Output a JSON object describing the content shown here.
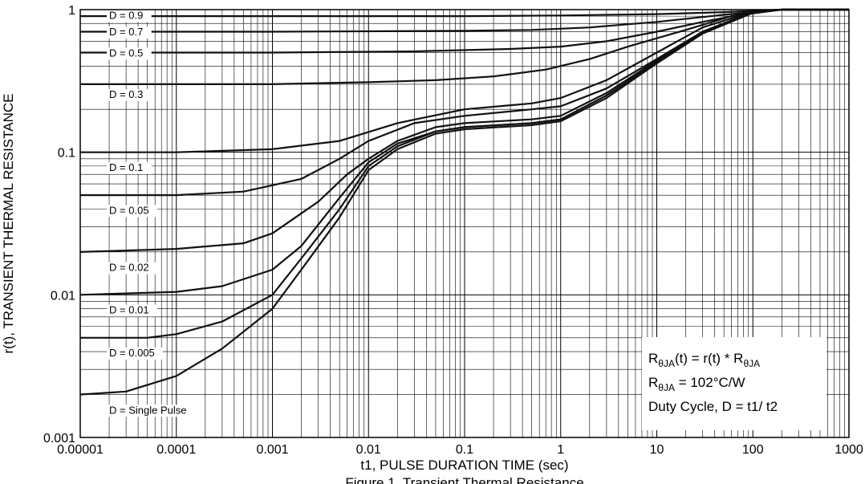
{
  "chart_data": {
    "type": "line",
    "xlabel": "t1, PULSE DURATION TIME (sec)",
    "ylabel": "r(t), TRANSIENT THERMAL RESISTANCE",
    "xscale": "log",
    "yscale": "log",
    "xlim": [
      1e-05,
      1000
    ],
    "ylim": [
      0.001,
      1
    ],
    "grid": true,
    "x_tick_labels": [
      "0.00001",
      "0.0001",
      "0.001",
      "0.01",
      "0.1",
      "1",
      "10",
      "100",
      "1000"
    ],
    "y_tick_labels": [
      "1",
      "0.1",
      "0.01",
      "0.001"
    ],
    "series": [
      {
        "name": "D = 0.9",
        "label_pos": [
          2e-05,
          0.86
        ],
        "x": [
          1e-05,
          0.001,
          0.1,
          1,
          10,
          50,
          200,
          1000
        ],
        "y": [
          0.9,
          0.9,
          0.9,
          0.91,
          0.93,
          0.96,
          1.0,
          1.0
        ]
      },
      {
        "name": "D = 0.7",
        "label_pos": [
          2e-05,
          0.66
        ],
        "x": [
          1e-05,
          0.001,
          0.1,
          0.5,
          2,
          10,
          50,
          200,
          1000
        ],
        "y": [
          0.7,
          0.7,
          0.71,
          0.72,
          0.75,
          0.82,
          0.92,
          1.0,
          1.0
        ]
      },
      {
        "name": "D = 0.5",
        "label_pos": [
          2e-05,
          0.47
        ],
        "x": [
          1e-05,
          0.001,
          0.03,
          0.3,
          1,
          3,
          10,
          30,
          100,
          200,
          1000
        ],
        "y": [
          0.5,
          0.5,
          0.51,
          0.53,
          0.55,
          0.6,
          0.7,
          0.82,
          0.96,
          1.0,
          1.0
        ]
      },
      {
        "name": "D = 0.3",
        "label_pos": [
          2e-05,
          0.24
        ],
        "x": [
          1e-05,
          0.001,
          0.01,
          0.05,
          0.2,
          0.7,
          2,
          5,
          20,
          60,
          200,
          1000
        ],
        "y": [
          0.3,
          0.3,
          0.31,
          0.32,
          0.34,
          0.38,
          0.45,
          0.55,
          0.72,
          0.9,
          1.0,
          1.0
        ]
      },
      {
        "name": "D = 0.1",
        "label_pos": [
          2e-05,
          0.074
        ],
        "x": [
          1e-05,
          0.0001,
          0.001,
          0.005,
          0.02,
          0.1,
          0.5,
          1,
          3,
          10,
          30,
          100,
          200,
          1000
        ],
        "y": [
          0.1,
          0.1,
          0.105,
          0.12,
          0.16,
          0.2,
          0.22,
          0.24,
          0.32,
          0.5,
          0.75,
          0.97,
          1.0,
          1.0
        ]
      },
      {
        "name": "D = 0.05",
        "label_pos": [
          2e-05,
          0.037
        ],
        "x": [
          1e-05,
          0.0001,
          0.0005,
          0.002,
          0.005,
          0.01,
          0.03,
          0.1,
          0.5,
          1,
          3,
          10,
          30,
          100,
          200,
          1000
        ],
        "y": [
          0.05,
          0.05,
          0.053,
          0.065,
          0.09,
          0.12,
          0.16,
          0.18,
          0.2,
          0.21,
          0.28,
          0.45,
          0.7,
          0.96,
          1.0,
          1.0
        ]
      },
      {
        "name": "D = 0.02",
        "label_pos": [
          2e-05,
          0.0147
        ],
        "x": [
          1e-05,
          0.0001,
          0.0005,
          0.001,
          0.003,
          0.006,
          0.01,
          0.02,
          0.05,
          0.1,
          0.5,
          1,
          3,
          10,
          30,
          100,
          200,
          1000
        ],
        "y": [
          0.02,
          0.021,
          0.023,
          0.027,
          0.045,
          0.07,
          0.09,
          0.12,
          0.15,
          0.16,
          0.17,
          0.18,
          0.26,
          0.44,
          0.7,
          0.96,
          1.0,
          1.0
        ]
      },
      {
        "name": "D = 0.01",
        "label_pos": [
          2e-05,
          0.0074
        ],
        "x": [
          1e-05,
          0.0001,
          0.0003,
          0.001,
          0.002,
          0.005,
          0.01,
          0.02,
          0.05,
          0.1,
          0.5,
          1,
          3,
          10,
          30,
          100,
          200,
          1000
        ],
        "y": [
          0.01,
          0.0105,
          0.0115,
          0.015,
          0.022,
          0.048,
          0.085,
          0.115,
          0.14,
          0.15,
          0.16,
          0.17,
          0.25,
          0.43,
          0.7,
          0.96,
          1.0,
          1.0
        ]
      },
      {
        "name": "D = 0.005",
        "label_pos": [
          2e-05,
          0.0037
        ],
        "x": [
          1e-05,
          5e-05,
          0.0001,
          0.0003,
          0.001,
          0.002,
          0.005,
          0.01,
          0.02,
          0.05,
          0.1,
          0.5,
          1,
          3,
          10,
          30,
          100,
          200,
          1000
        ],
        "y": [
          0.005,
          0.005,
          0.0053,
          0.0065,
          0.01,
          0.018,
          0.04,
          0.08,
          0.11,
          0.14,
          0.15,
          0.16,
          0.17,
          0.25,
          0.43,
          0.7,
          0.96,
          1.0,
          1.0
        ]
      },
      {
        "name": "D = Single Pulse",
        "label_pos": [
          2e-05,
          0.00147
        ],
        "x": [
          1e-05,
          3e-05,
          0.0001,
          0.0003,
          0.001,
          0.002,
          0.005,
          0.01,
          0.02,
          0.05,
          0.1,
          0.5,
          1,
          3,
          10,
          30,
          100,
          200,
          1000
        ],
        "y": [
          0.002,
          0.0021,
          0.0027,
          0.0042,
          0.008,
          0.015,
          0.035,
          0.075,
          0.105,
          0.135,
          0.145,
          0.155,
          0.165,
          0.24,
          0.42,
          0.68,
          0.95,
          1.0,
          1.0
        ]
      }
    ],
    "annotations": [
      {
        "main": "R",
        "sub": "θJA",
        "rest": "(t) = r(t) * R",
        "sub2": "θJA"
      },
      {
        "main": "R",
        "sub": "θJA",
        "rest": " = 102°C/W"
      },
      {
        "main": "Duty Cycle, D = t1/ t2"
      }
    ],
    "caption_partial": "Figure 1. Transient Thermal Resistance"
  }
}
